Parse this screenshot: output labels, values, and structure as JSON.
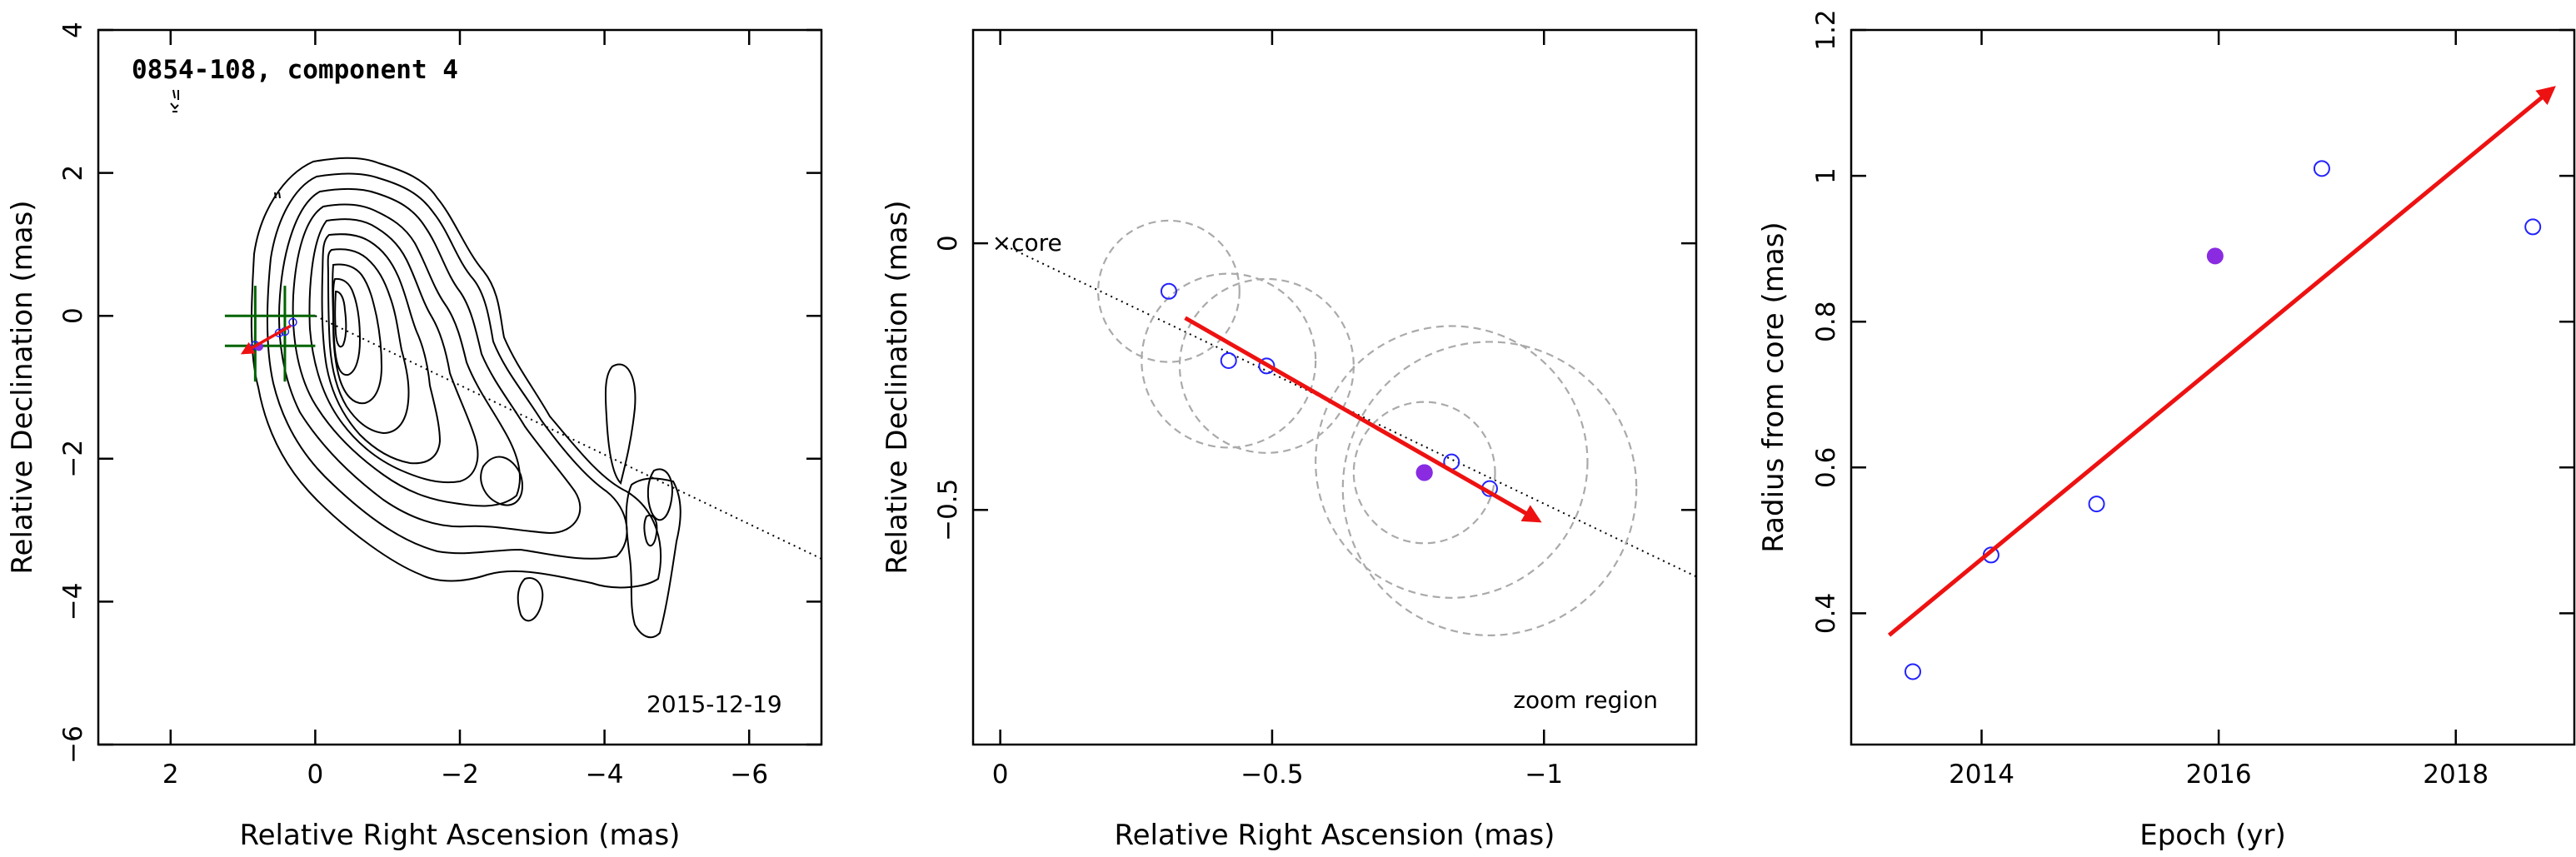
{
  "chart_data": [
    {
      "type": "scatter",
      "title": "0854-108, component 4",
      "xlabel": "Relative Right Ascension (mas)",
      "ylabel": "Relative Declination (mas)",
      "xlim": [
        3,
        -7
      ],
      "ylim": [
        -6,
        4
      ],
      "xticks": [
        2,
        0,
        -2,
        -4,
        -6
      ],
      "xtick_labels": [
        "2",
        "0",
        "−2",
        "−4",
        "−6"
      ],
      "yticks": [
        4,
        2,
        0,
        -2,
        -4,
        -6
      ],
      "ytick_labels": [
        "4",
        "2",
        "0",
        "−2",
        "−4",
        "−6"
      ],
      "date_label": "2015-12-19",
      "annotations": [],
      "series": [
        {
          "x": [
            0.31,
            0.42,
            0.5,
            0.78,
            0.83,
            0.9
          ],
          "y": [
            -0.09,
            -0.22,
            -0.24,
            -0.43,
            -0.41,
            -0.46
          ]
        }
      ],
      "highlight": {
        "x": 0.78,
        "y": -0.43
      },
      "arrow": {
        "from": [
          0.34,
          -0.14
        ],
        "to": [
          1.0,
          -0.52
        ]
      },
      "boxes_x": [
        0.0,
        0.42,
        0.83,
        1.25
      ],
      "boxes_y": [
        0.42,
        0.0,
        -0.42,
        -0.92
      ],
      "colors": {
        "points": "#2222ff",
        "highlight": "#8a2be2",
        "arrow": "#ee1111",
        "boxes": "#006400"
      }
    },
    {
      "type": "scatter",
      "title": "",
      "xlabel": "Relative Right Ascension (mas)",
      "ylabel": "Relative Declination (mas)",
      "xlim": [
        0.05,
        -1.28
      ],
      "ylim": [
        -0.94,
        0.4
      ],
      "xticks": [
        0,
        -0.5,
        -1
      ],
      "xtick_labels": [
        "0",
        "−0.5",
        "−1"
      ],
      "yticks": [
        0,
        -0.5
      ],
      "ytick_labels": [
        "0",
        "−0.5"
      ],
      "core_label": "×core",
      "zoom_label": "zoom region",
      "series": [
        {
          "x": [
            -0.31,
            -0.42,
            -0.49,
            -0.78,
            -0.83,
            -0.9
          ],
          "y": [
            -0.09,
            -0.22,
            -0.23,
            -0.43,
            -0.41,
            -0.46
          ]
        }
      ],
      "highlight": {
        "x": -0.78,
        "y": -0.43
      },
      "arrow": {
        "from": [
          -0.34,
          -0.14
        ],
        "to": [
          -0.99,
          -0.52
        ]
      },
      "circles": [
        {
          "x": -0.31,
          "y": -0.09,
          "r": 0.13
        },
        {
          "x": -0.42,
          "y": -0.22,
          "r": 0.16
        },
        {
          "x": -0.49,
          "y": -0.23,
          "r": 0.16
        },
        {
          "x": -0.78,
          "y": -0.43,
          "r": 0.13
        },
        {
          "x": -0.83,
          "y": -0.41,
          "r": 0.25
        },
        {
          "x": -0.9,
          "y": -0.46,
          "r": 0.27
        }
      ],
      "colors": {
        "points": "#2222ff",
        "highlight": "#8a2be2",
        "arrow": "#ee1111"
      }
    },
    {
      "type": "scatter",
      "title": "",
      "xlabel": "Epoch (yr)",
      "ylabel": "Radius from core (mas)",
      "xlim": [
        2012.9,
        2019.0
      ],
      "ylim": [
        0.22,
        1.2
      ],
      "xticks": [
        2014,
        2016,
        2018
      ],
      "xtick_labels": [
        "2014",
        "2016",
        "2018"
      ],
      "yticks": [
        0.4,
        0.6,
        0.8,
        1.0,
        1.2
      ],
      "ytick_labels": [
        "0.4",
        "0.6",
        "0.8",
        "1",
        "1.2"
      ],
      "series": [
        {
          "x": [
            2013.42,
            2014.08,
            2014.97,
            2016.87,
            2018.65
          ],
          "y": [
            0.32,
            0.48,
            0.55,
            1.01,
            0.93
          ]
        }
      ],
      "highlight": {
        "x": 2015.97,
        "y": 0.89
      },
      "arrow": {
        "from": [
          2013.22,
          0.37
        ],
        "to": [
          2018.82,
          1.12
        ]
      },
      "colors": {
        "points": "#2222ff",
        "highlight": "#8a2be2",
        "arrow": "#ee1111"
      }
    }
  ]
}
